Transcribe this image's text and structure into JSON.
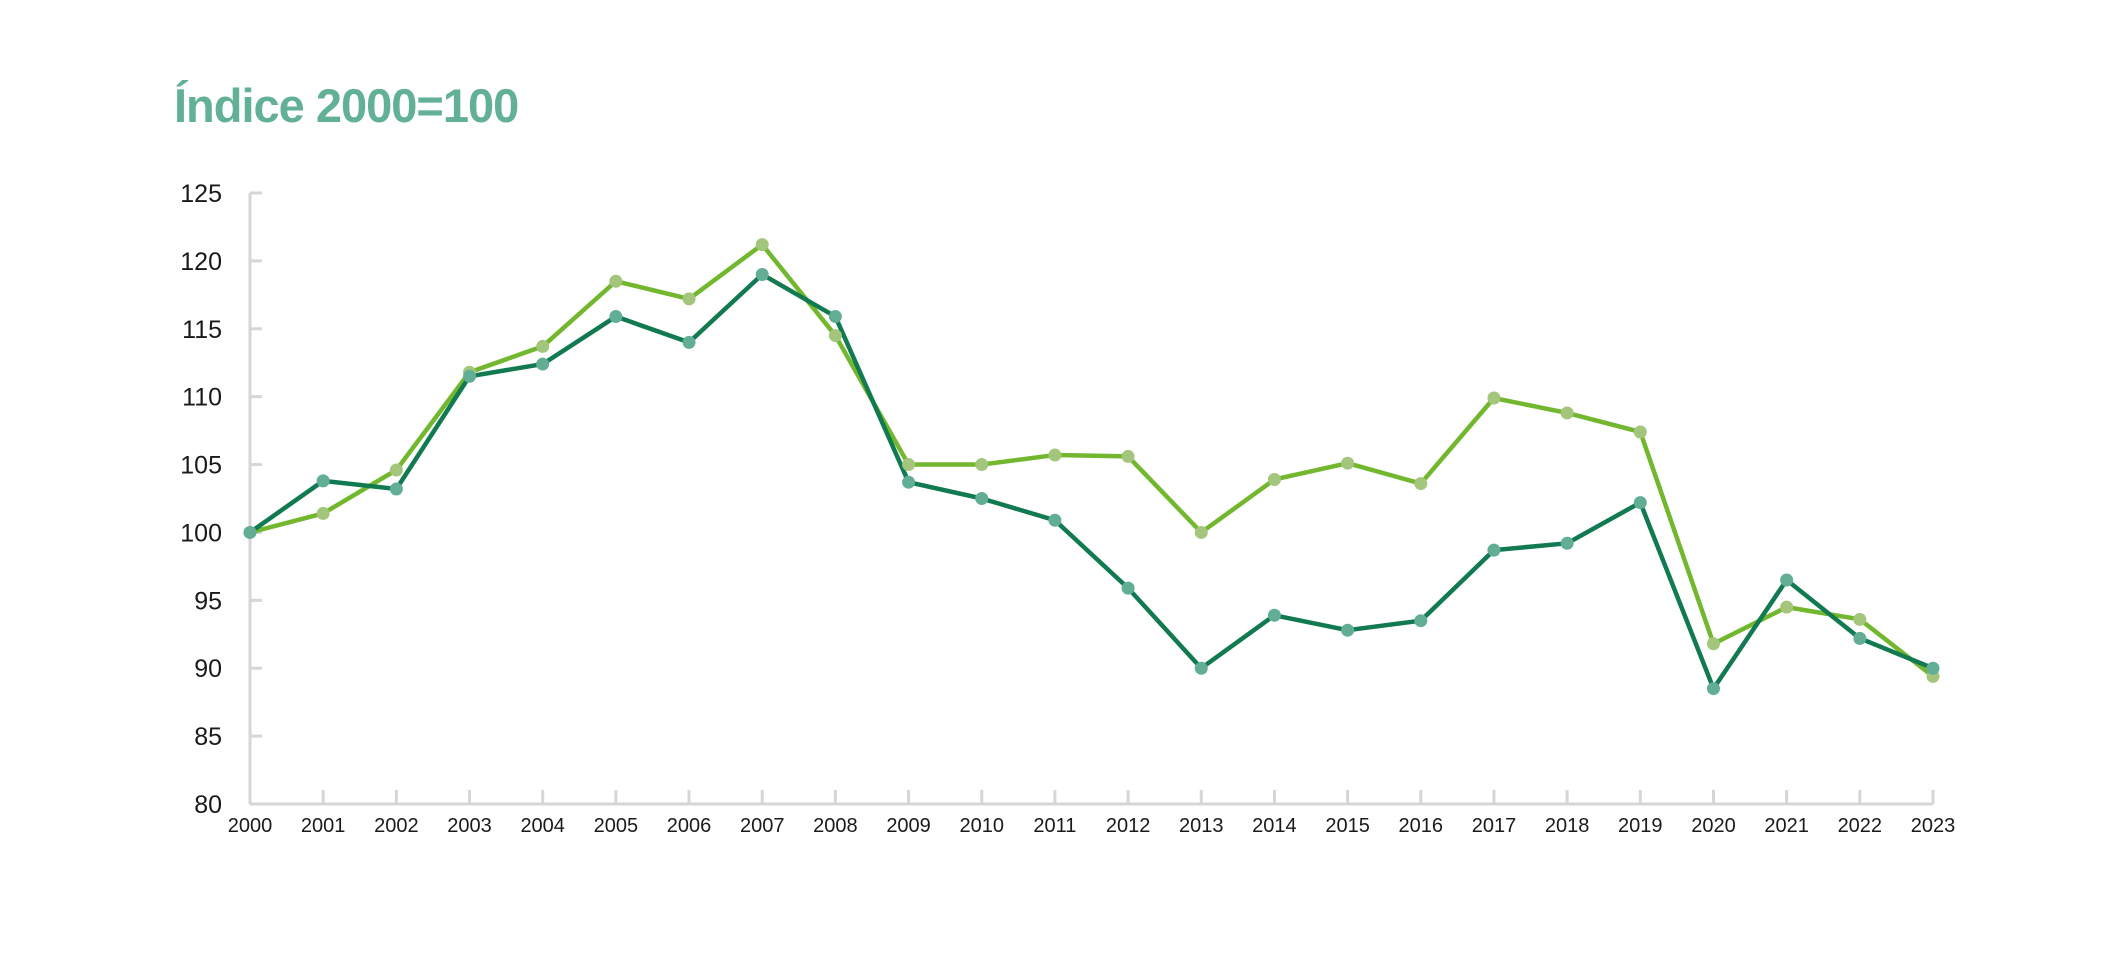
{
  "chart_data": {
    "type": "line",
    "title": "Índice 2000=100",
    "xlabel": "",
    "ylabel": "",
    "ylim": [
      80,
      125
    ],
    "yticks": [
      80,
      85,
      90,
      95,
      100,
      105,
      110,
      115,
      120,
      125
    ],
    "categories": [
      "2000",
      "2001",
      "2002",
      "2003",
      "2004",
      "2005",
      "2006",
      "2007",
      "2008",
      "2009",
      "2010",
      "2011",
      "2012",
      "2013",
      "2014",
      "2015",
      "2016",
      "2017",
      "2018",
      "2019",
      "2020",
      "2021",
      "2022",
      "2023"
    ],
    "grid": false,
    "legend": "none",
    "series": [
      {
        "color": "#72b72e",
        "marker_color": "#a3c57c",
        "values": [
          100,
          101.4,
          104.6,
          111.8,
          113.7,
          118.5,
          117.2,
          121.2,
          114.5,
          105.0,
          105.0,
          105.7,
          105.6,
          100.0,
          103.9,
          105.1,
          103.6,
          109.9,
          108.8,
          107.4,
          91.8,
          94.5,
          93.6,
          89.4
        ]
      },
      {
        "color": "#117a50",
        "marker_color": "#62ae94",
        "values": [
          100,
          103.8,
          103.2,
          111.5,
          112.4,
          115.9,
          114.0,
          119.0,
          115.9,
          103.7,
          102.5,
          100.9,
          95.9,
          90.0,
          93.9,
          92.8,
          93.5,
          98.7,
          99.2,
          102.2,
          88.5,
          96.5,
          92.2,
          90.0
        ]
      }
    ]
  }
}
